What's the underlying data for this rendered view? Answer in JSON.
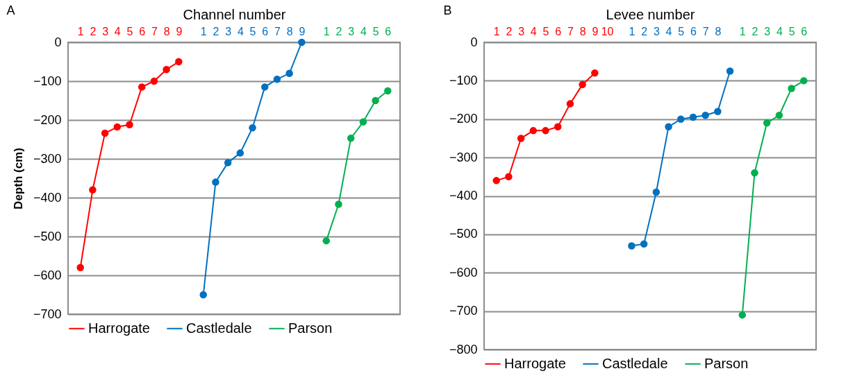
{
  "chart_data": [
    {
      "type": "line",
      "title": "A",
      "xlabel": "Channel number",
      "ylabel": "Depth (cm)",
      "categories": [
        "1",
        "2",
        "3",
        "4",
        "5",
        "6",
        "7",
        "8",
        "9",
        null,
        "1",
        "2",
        "3",
        "4",
        "5",
        "6",
        "7",
        "8",
        "9",
        null,
        "1",
        "2",
        "3",
        "4",
        "5",
        "6"
      ],
      "series": [
        {
          "name": "Harrogate",
          "color": "#ff0000",
          "values": [
            -580,
            -380,
            -234,
            -218,
            -212,
            -115,
            -100,
            -70,
            -50,
            null,
            null,
            null,
            null,
            null,
            null,
            null,
            null,
            null,
            null,
            null,
            null,
            null,
            null,
            null,
            null,
            null
          ]
        },
        {
          "name": "Castledale",
          "color": "#0070c0",
          "values": [
            null,
            null,
            null,
            null,
            null,
            null,
            null,
            null,
            null,
            null,
            -650,
            -360,
            -310,
            -285,
            -220,
            -115,
            -95,
            -80,
            0,
            null,
            null,
            null,
            null,
            null,
            null,
            null
          ]
        },
        {
          "name": "Parson",
          "color": "#00b050",
          "values": [
            null,
            null,
            null,
            null,
            null,
            null,
            null,
            null,
            null,
            null,
            null,
            null,
            null,
            null,
            null,
            null,
            null,
            null,
            null,
            null,
            -511,
            -417,
            -247,
            -205,
            -150,
            -125
          ]
        }
      ],
      "ylim": [
        -700,
        0
      ],
      "yticks": [
        -700,
        -600,
        -500,
        -400,
        -300,
        -200,
        -100,
        0
      ],
      "grid": "y",
      "legend": "bottom",
      "marker": "circle"
    },
    {
      "type": "line",
      "title": "B",
      "xlabel": "Levee number",
      "categories": [
        "1",
        "2",
        "3",
        "4",
        "5",
        "6",
        "7",
        "8",
        "9",
        "10",
        null,
        "1",
        "2",
        "3",
        "4",
        "5",
        "6",
        "7",
        "8",
        null,
        "1",
        "2",
        "3",
        "4",
        "5",
        "6"
      ],
      "series": [
        {
          "name": "Harrogate",
          "color": "#ff0000",
          "values": [
            -360,
            -350,
            -250,
            -230,
            -230,
            -220,
            -160,
            -110,
            -80,
            null,
            null,
            null,
            null,
            null,
            null,
            null,
            null,
            null,
            null,
            null,
            null,
            null,
            null,
            null,
            null,
            null
          ]
        },
        {
          "name": "Castledale",
          "color": "#0070c0",
          "values": [
            null,
            null,
            null,
            null,
            null,
            null,
            null,
            null,
            null,
            null,
            null,
            -530,
            -525,
            -390,
            -220,
            -200,
            -195,
            -190,
            -180,
            -75,
            null,
            null,
            null,
            null,
            null,
            null
          ]
        },
        {
          "name": "Parson",
          "color": "#00b050",
          "values": [
            null,
            null,
            null,
            null,
            null,
            null,
            null,
            null,
            null,
            null,
            null,
            null,
            null,
            null,
            null,
            null,
            null,
            null,
            null,
            null,
            -710,
            -340,
            -210,
            -190,
            -120,
            -100
          ]
        }
      ],
      "ylim": [
        -800,
        0
      ],
      "yticks": [
        -800,
        -700,
        -600,
        -500,
        -400,
        -300,
        -200,
        -100,
        0
      ],
      "grid": "y",
      "legend": "bottom",
      "marker": "circle"
    }
  ]
}
